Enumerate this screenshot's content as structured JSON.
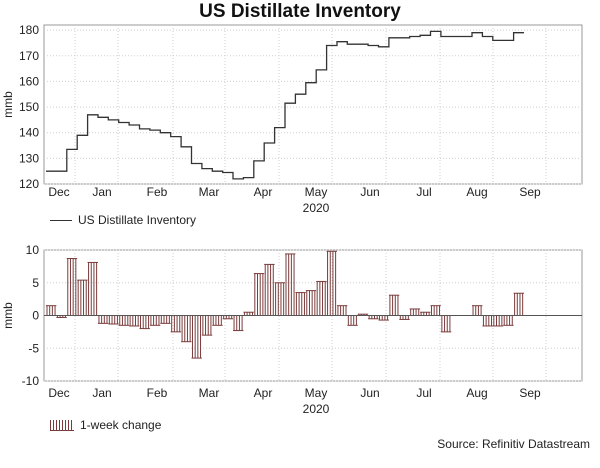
{
  "title": "US Distillate Inventory",
  "source": "Source: Refinitiv Datastream",
  "chart_data": [
    {
      "type": "line",
      "name": "inventory",
      "title": "US Distillate Inventory",
      "ylabel": "mmb",
      "xlabel": "2020",
      "ylim": [
        120,
        182
      ],
      "yticks": [
        120,
        130,
        140,
        150,
        160,
        170,
        180
      ],
      "x_month_labels": [
        "Dec",
        "Jan",
        "Feb",
        "Mar",
        "Apr",
        "May",
        "Jun",
        "Jul",
        "Aug",
        "Sep"
      ],
      "legend": "US Distillate Inventory",
      "color": "#333333",
      "series": [
        {
          "name": "US Distillate Inventory",
          "values": [
            125.0,
            125.0,
            133.5,
            139.0,
            147.0,
            146.0,
            145.0,
            144.0,
            143.0,
            141.5,
            141.0,
            140.0,
            138.5,
            134.5,
            128.0,
            126.0,
            125.0,
            124.5,
            122.0,
            122.5,
            129.0,
            136.0,
            142.0,
            151.5,
            155.0,
            159.5,
            164.5,
            174.0,
            175.5,
            174.5,
            174.5,
            174.0,
            173.5,
            177.0,
            177.0,
            177.5,
            178.0,
            179.5,
            177.5,
            177.5,
            177.5,
            179.0,
            177.5,
            176.0,
            176.0,
            179.0
          ]
        }
      ]
    },
    {
      "type": "bar",
      "name": "weekly-change",
      "ylabel": "mmb",
      "xlabel": "2020",
      "ylim": [
        -10,
        10
      ],
      "yticks": [
        -10,
        -5,
        0,
        5,
        10
      ],
      "x_month_labels": [
        "Dec",
        "Jan",
        "Feb",
        "Mar",
        "Apr",
        "May",
        "Jun",
        "Jul",
        "Aug",
        "Sep"
      ],
      "legend": "1-week change",
      "color": "#7a3b3b",
      "series": [
        {
          "name": "1-week change",
          "values": [
            1.5,
            -0.3,
            8.7,
            5.4,
            8.1,
            -1.2,
            -1.3,
            -1.5,
            -1.6,
            -2.0,
            -1.5,
            -1.2,
            -2.5,
            -4.0,
            -6.5,
            -3.0,
            -1.5,
            -0.5,
            -2.3,
            0.5,
            6.4,
            7.8,
            5.0,
            9.4,
            3.5,
            3.8,
            5.2,
            9.8,
            1.5,
            -1.5,
            0.2,
            -0.5,
            -0.7,
            3.1,
            -0.6,
            1.0,
            0.5,
            1.5,
            -2.5,
            0.0,
            0.0,
            1.5,
            -1.6,
            -1.6,
            -1.5,
            3.4
          ]
        }
      ]
    }
  ]
}
